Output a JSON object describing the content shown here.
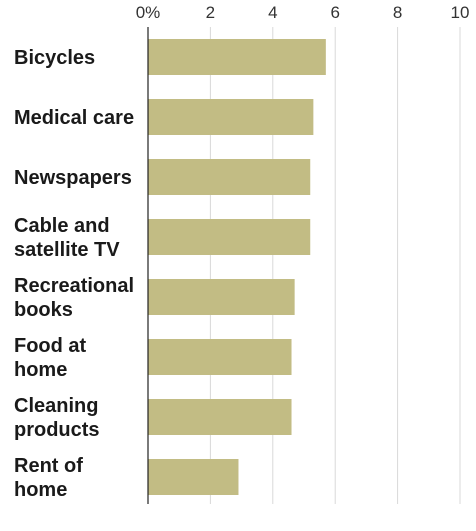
{
  "chart_data": {
    "type": "bar",
    "orientation": "horizontal",
    "categories": [
      [
        "Bicycles"
      ],
      [
        "Medical care"
      ],
      [
        "Newspapers"
      ],
      [
        "Cable and",
        "satellite TV"
      ],
      [
        "Recreational",
        "books"
      ],
      [
        "Food at",
        "home"
      ],
      [
        "Cleaning",
        "products"
      ],
      [
        "Rent of",
        "home"
      ]
    ],
    "values": [
      5.7,
      5.3,
      5.2,
      5.2,
      4.7,
      4.6,
      4.6,
      2.9
    ],
    "xlim": [
      0,
      10
    ],
    "x_ticks": [
      0,
      2,
      4,
      6,
      8,
      10
    ],
    "x_tick_labels": [
      "0%",
      "2",
      "4",
      "6",
      "8",
      "10"
    ],
    "axis_position": "top",
    "grid": true,
    "title": "",
    "xlabel": "",
    "ylabel": "",
    "colors": {
      "bar": "#c2bc84",
      "grid": "#d9d9d9",
      "axis": "#222222"
    }
  }
}
